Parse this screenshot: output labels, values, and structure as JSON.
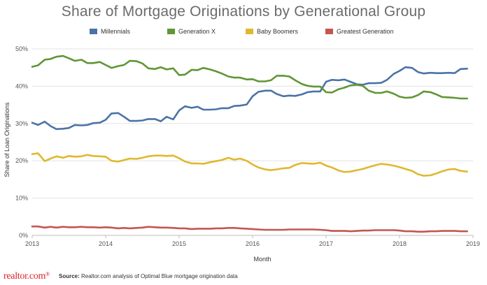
{
  "chart_data": {
    "type": "line",
    "title": "Share of Mortgage Originations by Generational Group",
    "xlabel": "Month",
    "ylabel": "Share of Loan Originations",
    "ylim": [
      0,
      50
    ],
    "yticks": [
      "0%",
      "10%",
      "20%",
      "30%",
      "40%",
      "50%"
    ],
    "xticks": [
      "2013",
      "2014",
      "2015",
      "2016",
      "2017",
      "2018",
      "2019"
    ],
    "xlim": [
      2013,
      2019
    ],
    "grid": true,
    "legend_position": "top",
    "x": [
      2013.0,
      2013.08,
      2013.17,
      2013.25,
      2013.33,
      2013.42,
      2013.5,
      2013.58,
      2013.67,
      2013.75,
      2013.83,
      2013.92,
      2014.0,
      2014.08,
      2014.17,
      2014.25,
      2014.33,
      2014.42,
      2014.5,
      2014.58,
      2014.67,
      2014.75,
      2014.83,
      2014.92,
      2015.0,
      2015.08,
      2015.17,
      2015.25,
      2015.33,
      2015.42,
      2015.5,
      2015.58,
      2015.67,
      2015.75,
      2015.83,
      2015.92,
      2016.0,
      2016.08,
      2016.17,
      2016.25,
      2016.33,
      2016.42,
      2016.5,
      2016.58,
      2016.67,
      2016.75,
      2016.83,
      2016.92,
      2017.0,
      2017.08,
      2017.17,
      2017.25,
      2017.33,
      2017.42,
      2017.5,
      2017.58,
      2017.67,
      2017.75,
      2017.83,
      2017.92,
      2018.0,
      2018.08,
      2018.17,
      2018.25,
      2018.33,
      2018.42,
      2018.5,
      2018.58,
      2018.67,
      2018.75,
      2018.83,
      2018.92
    ],
    "series": [
      {
        "name": "Millennials",
        "color": "#4b73a6",
        "values": [
          30.2,
          29.6,
          30.5,
          29.3,
          28.5,
          28.6,
          28.8,
          29.6,
          29.5,
          29.6,
          30.1,
          30.2,
          31.0,
          32.7,
          32.8,
          31.8,
          30.7,
          30.7,
          30.8,
          31.2,
          31.2,
          30.6,
          31.8,
          31.1,
          33.5,
          34.6,
          34.2,
          34.5,
          33.7,
          33.7,
          33.8,
          34.1,
          34.1,
          34.7,
          34.8,
          35.1,
          37.3,
          38.5,
          38.8,
          38.8,
          37.9,
          37.3,
          37.5,
          37.4,
          37.8,
          38.4,
          38.6,
          38.6,
          41.2,
          41.7,
          41.6,
          41.8,
          41.2,
          40.5,
          40.4,
          40.8,
          40.8,
          40.9,
          41.7,
          43.3,
          44.1,
          45.1,
          44.9,
          43.8,
          43.4,
          43.6,
          43.5,
          43.5,
          43.6,
          43.5,
          44.6,
          44.7
        ]
      },
      {
        "name": "Generation X",
        "color": "#5f9636",
        "values": [
          45.2,
          45.6,
          47.1,
          47.3,
          47.9,
          48.1,
          47.5,
          46.8,
          47.1,
          46.2,
          46.2,
          46.5,
          45.7,
          44.9,
          45.4,
          45.7,
          46.8,
          46.7,
          46.1,
          44.8,
          44.6,
          45.1,
          44.5,
          44.8,
          43.0,
          43.1,
          44.4,
          44.3,
          44.9,
          44.5,
          44.0,
          43.4,
          42.6,
          42.3,
          42.3,
          41.8,
          41.9,
          41.3,
          41.3,
          41.6,
          42.8,
          42.8,
          42.6,
          41.6,
          40.6,
          40.1,
          39.9,
          39.9,
          38.4,
          38.3,
          39.2,
          39.6,
          40.2,
          40.4,
          40.1,
          38.8,
          38.2,
          38.2,
          38.6,
          38.0,
          37.2,
          36.9,
          37.0,
          37.6,
          38.6,
          38.4,
          37.8,
          37.1,
          37.0,
          36.9,
          36.7,
          36.7
        ]
      },
      {
        "name": "Baby Boomers",
        "color": "#e0b82f",
        "values": [
          21.8,
          22.0,
          19.9,
          20.6,
          21.2,
          20.8,
          21.3,
          21.1,
          21.2,
          21.6,
          21.3,
          21.2,
          21.1,
          20.0,
          19.8,
          20.2,
          20.6,
          20.5,
          20.8,
          21.2,
          21.4,
          21.4,
          21.3,
          21.4,
          20.7,
          19.8,
          19.3,
          19.3,
          19.2,
          19.6,
          19.9,
          20.2,
          20.8,
          20.3,
          20.6,
          20.0,
          19.0,
          18.2,
          17.7,
          17.5,
          17.7,
          18.0,
          18.1,
          18.9,
          19.4,
          19.3,
          19.2,
          19.5,
          18.7,
          18.2,
          17.4,
          17.0,
          17.1,
          17.5,
          17.8,
          18.3,
          18.8,
          19.2,
          19.0,
          18.7,
          18.3,
          17.8,
          17.3,
          16.4,
          16.0,
          16.1,
          16.6,
          17.2,
          17.7,
          17.8,
          17.3,
          17.1
        ]
      },
      {
        "name": "Greatest Generation",
        "color": "#c45650",
        "values": [
          2.4,
          2.4,
          2.1,
          2.3,
          2.1,
          2.3,
          2.2,
          2.2,
          2.3,
          2.2,
          2.2,
          2.1,
          2.2,
          2.1,
          1.9,
          2.0,
          1.9,
          2.0,
          2.1,
          2.3,
          2.2,
          2.1,
          2.1,
          2.0,
          1.9,
          1.9,
          1.7,
          1.8,
          1.8,
          1.8,
          1.9,
          1.9,
          2.0,
          2.0,
          1.9,
          1.8,
          1.7,
          1.6,
          1.5,
          1.5,
          1.5,
          1.5,
          1.6,
          1.6,
          1.6,
          1.6,
          1.6,
          1.5,
          1.4,
          1.2,
          1.2,
          1.2,
          1.1,
          1.2,
          1.3,
          1.3,
          1.4,
          1.4,
          1.4,
          1.4,
          1.3,
          1.1,
          1.1,
          1.0,
          1.0,
          1.1,
          1.1,
          1.2,
          1.2,
          1.2,
          1.1,
          1.1
        ]
      }
    ]
  },
  "footer": {
    "brand": "realtor.com",
    "brand_mark": "®",
    "source_label": "Source:",
    "source_text": "Realtor.com analysis of Optimal Blue mortgage origination data"
  }
}
